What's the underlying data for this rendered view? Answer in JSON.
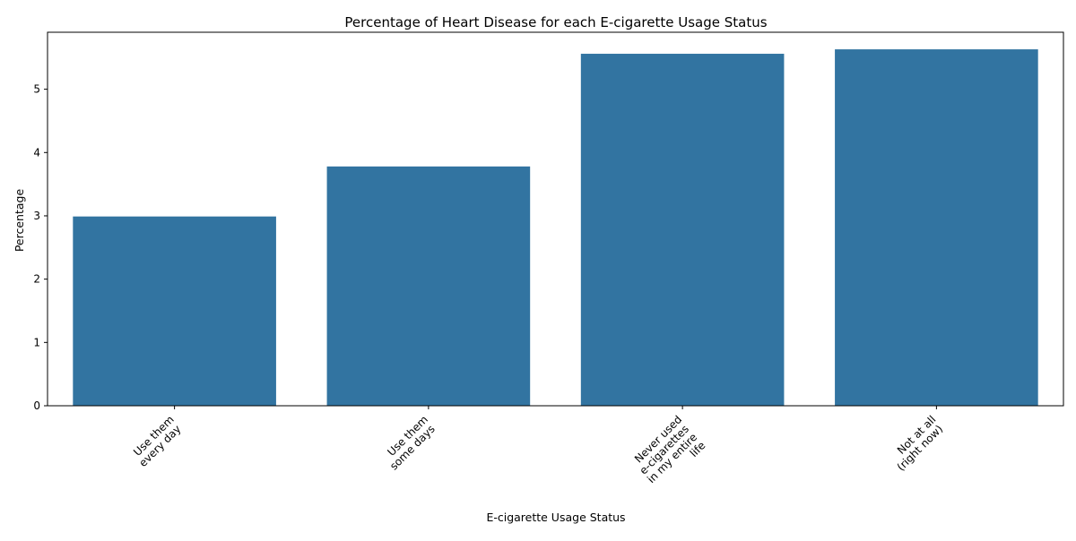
{
  "chart_data": {
    "type": "bar",
    "title": "Percentage of Heart Disease for each E-cigarette Usage Status",
    "xlabel": "E-cigarette Usage Status",
    "ylabel": "Percentage",
    "categories": [
      [
        "Use them",
        "every day"
      ],
      [
        "Use them",
        "some days"
      ],
      [
        "Never used",
        "e-cigarettes",
        "in my entire",
        "life"
      ],
      [
        "Not at all",
        "(right now)"
      ]
    ],
    "values": [
      2.99,
      3.78,
      5.56,
      5.63
    ],
    "ylim": [
      0,
      5.9
    ],
    "yticks": [
      0,
      1,
      2,
      3,
      4,
      5
    ],
    "grid": false,
    "legend": "none",
    "bar_color": "#3274a1"
  }
}
